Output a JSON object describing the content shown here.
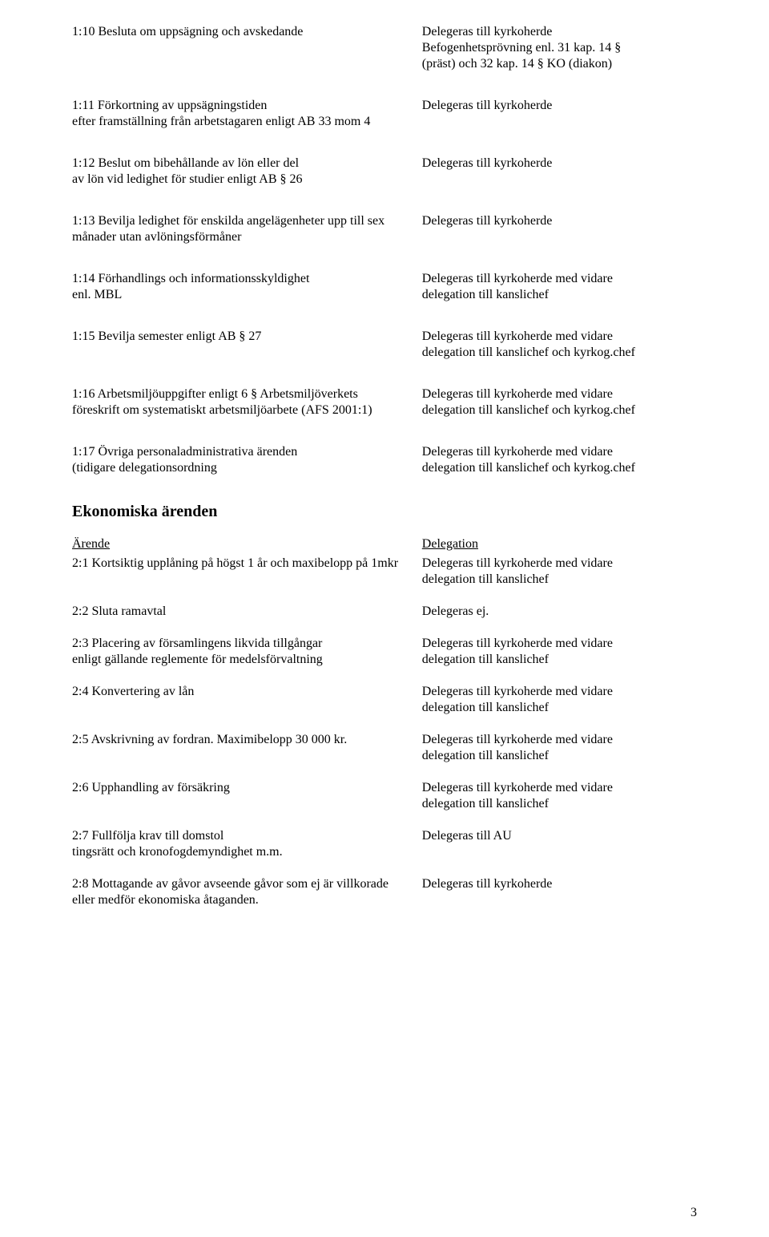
{
  "page_number": "3",
  "blocks": [
    {
      "left": "1:10 Besluta om uppsägning och avskedande",
      "right": "Delegeras till kyrkoherde\nBefogenhetsprövning enl. 31 kap. 14 §\n(präst) och 32 kap. 14 § KO (diakon)"
    },
    {
      "left": "1:11 Förkortning av uppsägningstiden\nefter framställning från arbetstagaren enligt AB 33 mom 4",
      "right": "Delegeras till kyrkoherde"
    },
    {
      "left": "1:12 Beslut om bibehållande av lön eller del\nav lön vid ledighet för studier enligt AB § 26",
      "right": "Delegeras till kyrkoherde"
    },
    {
      "left": "1:13 Bevilja ledighet för enskilda angelägenheter upp till sex\nmånader utan avlöningsförmåner",
      "right": "Delegeras till kyrkoherde"
    },
    {
      "left": "1:14 Förhandlings och informationsskyldighet\nenl. MBL",
      "right": "Delegeras till kyrkoherde med vidare\ndelegation till kanslichef"
    },
    {
      "left": "1:15 Bevilja semester enligt AB § 27",
      "right": "Delegeras till kyrkoherde med vidare\ndelegation till kanslichef och kyrkog.chef"
    },
    {
      "left": "1:16 Arbetsmiljöuppgifter enligt 6 § Arbetsmiljöverkets\nföreskrift om systematiskt arbetsmiljöarbete (AFS 2001:1)",
      "right": "Delegeras till kyrkoherde med vidare\ndelegation till kanslichef och kyrkog.chef"
    },
    {
      "left": "1:17 Övriga personaladministrativa ärenden\n(tidigare delegationsordning",
      "right": "Delegeras till kyrkoherde med vidare\ndelegation till kanslichef och kyrkog.chef"
    }
  ],
  "economic": {
    "heading": "Ekonomiska ärenden",
    "header_left": "Ärende",
    "header_right": "Delegation",
    "rows": [
      {
        "left": "2:1 Kortsiktig upplåning på högst 1 år och maxibelopp på 1mkr",
        "right": "Delegeras till kyrkoherde med vidare\ndelegation till kanslichef"
      },
      {
        "left": "2:2 Sluta ramavtal",
        "right": "Delegeras ej."
      },
      {
        "left": "2:3 Placering av församlingens likvida tillgångar\nenligt gällande reglemente för medelsförvaltning",
        "right": "Delegeras till kyrkoherde med vidare\ndelegation till kanslichef"
      },
      {
        "left": "2:4 Konvertering av lån",
        "right": "Delegeras till kyrkoherde med vidare\ndelegation till kanslichef"
      },
      {
        "left": "2:5 Avskrivning av fordran. Maximibelopp 30 000 kr.",
        "right": "Delegeras till kyrkoherde med vidare\ndelegation till kanslichef"
      },
      {
        "left": "2:6 Upphandling av försäkring",
        "right": "Delegeras till kyrkoherde med vidare\ndelegation till kanslichef"
      },
      {
        "left": "2:7 Fullfölja krav till domstol\ntingsrätt och kronofogdemyndighet m.m.",
        "right": "Delegeras till AU"
      },
      {
        "left": "2:8 Mottagande av gåvor avseende gåvor som ej är villkorade\neller medför ekonomiska åtaganden.",
        "right": "Delegeras till kyrkoherde"
      }
    ]
  }
}
